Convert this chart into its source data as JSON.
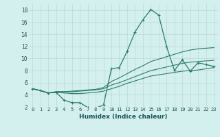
{
  "xlabel": "Humidex (Indice chaleur)",
  "background_color": "#d4f0ee",
  "grid_color": "#b8d8d4",
  "line_color": "#2a7a6a",
  "xlim": [
    -0.5,
    23.5
  ],
  "ylim": [
    2,
    19
  ],
  "yticks": [
    2,
    4,
    6,
    8,
    10,
    12,
    14,
    16,
    18
  ],
  "xticks": [
    0,
    1,
    2,
    3,
    4,
    5,
    6,
    7,
    8,
    9,
    10,
    11,
    12,
    13,
    14,
    15,
    16,
    17,
    18,
    19,
    20,
    21,
    22,
    23
  ],
  "series": [
    {
      "x": [
        0,
        1,
        2,
        3,
        4,
        5,
        6,
        7,
        8,
        9,
        10,
        11,
        12,
        13,
        14,
        15,
        16,
        17,
        18,
        19,
        20,
        21,
        22,
        23
      ],
      "y": [
        5.0,
        4.7,
        4.3,
        4.4,
        3.1,
        2.7,
        2.7,
        1.9,
        1.8,
        2.3,
        8.3,
        8.5,
        11.2,
        14.4,
        16.4,
        18.1,
        17.2,
        12.0,
        8.0,
        9.8,
        7.9,
        9.3,
        9.0,
        8.7
      ],
      "marker": true
    },
    {
      "x": [
        0,
        1,
        2,
        3,
        4,
        5,
        6,
        7,
        8,
        9,
        10,
        11,
        12,
        13,
        14,
        15,
        16,
        17,
        18,
        19,
        20,
        21,
        22,
        23
      ],
      "y": [
        5.0,
        4.7,
        4.3,
        4.4,
        4.3,
        4.2,
        4.2,
        4.3,
        4.4,
        4.6,
        5.0,
        5.4,
        5.9,
        6.3,
        6.7,
        7.1,
        7.3,
        7.5,
        7.7,
        7.9,
        8.0,
        8.1,
        8.3,
        8.5
      ],
      "marker": false
    },
    {
      "x": [
        0,
        1,
        2,
        3,
        4,
        5,
        6,
        7,
        8,
        9,
        10,
        11,
        12,
        13,
        14,
        15,
        16,
        17,
        18,
        19,
        20,
        21,
        22,
        23
      ],
      "y": [
        5.0,
        4.7,
        4.3,
        4.5,
        4.5,
        4.5,
        4.6,
        4.7,
        4.8,
        5.0,
        5.6,
        6.0,
        6.5,
        7.0,
        7.5,
        8.0,
        8.3,
        8.6,
        8.9,
        9.2,
        9.4,
        9.5,
        9.6,
        9.7
      ],
      "marker": false
    },
    {
      "x": [
        0,
        1,
        2,
        3,
        4,
        5,
        6,
        7,
        8,
        9,
        10,
        11,
        12,
        13,
        14,
        15,
        16,
        17,
        18,
        19,
        20,
        21,
        22,
        23
      ],
      "y": [
        5.0,
        4.7,
        4.3,
        4.5,
        4.5,
        4.6,
        4.7,
        4.8,
        4.9,
        5.2,
        6.2,
        6.8,
        7.5,
        8.2,
        8.8,
        9.5,
        9.9,
        10.3,
        10.7,
        11.1,
        11.4,
        11.6,
        11.7,
        11.8
      ],
      "marker": false
    }
  ]
}
